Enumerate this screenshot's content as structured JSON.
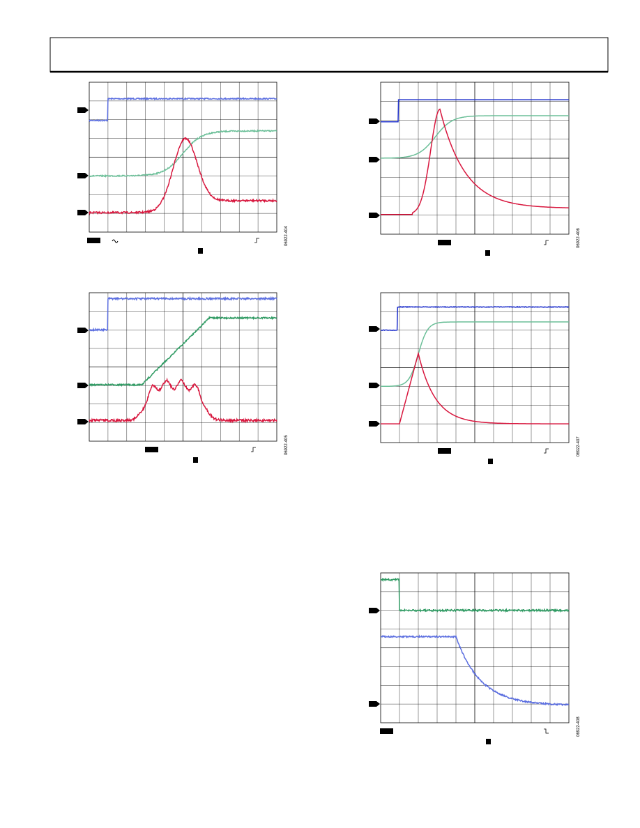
{
  "figures": [
    {
      "code": "06922-404"
    },
    {
      "code": "06922-406"
    },
    {
      "code": "06922-405"
    },
    {
      "code": "06922-407"
    },
    {
      "code": "06922-408"
    }
  ]
}
